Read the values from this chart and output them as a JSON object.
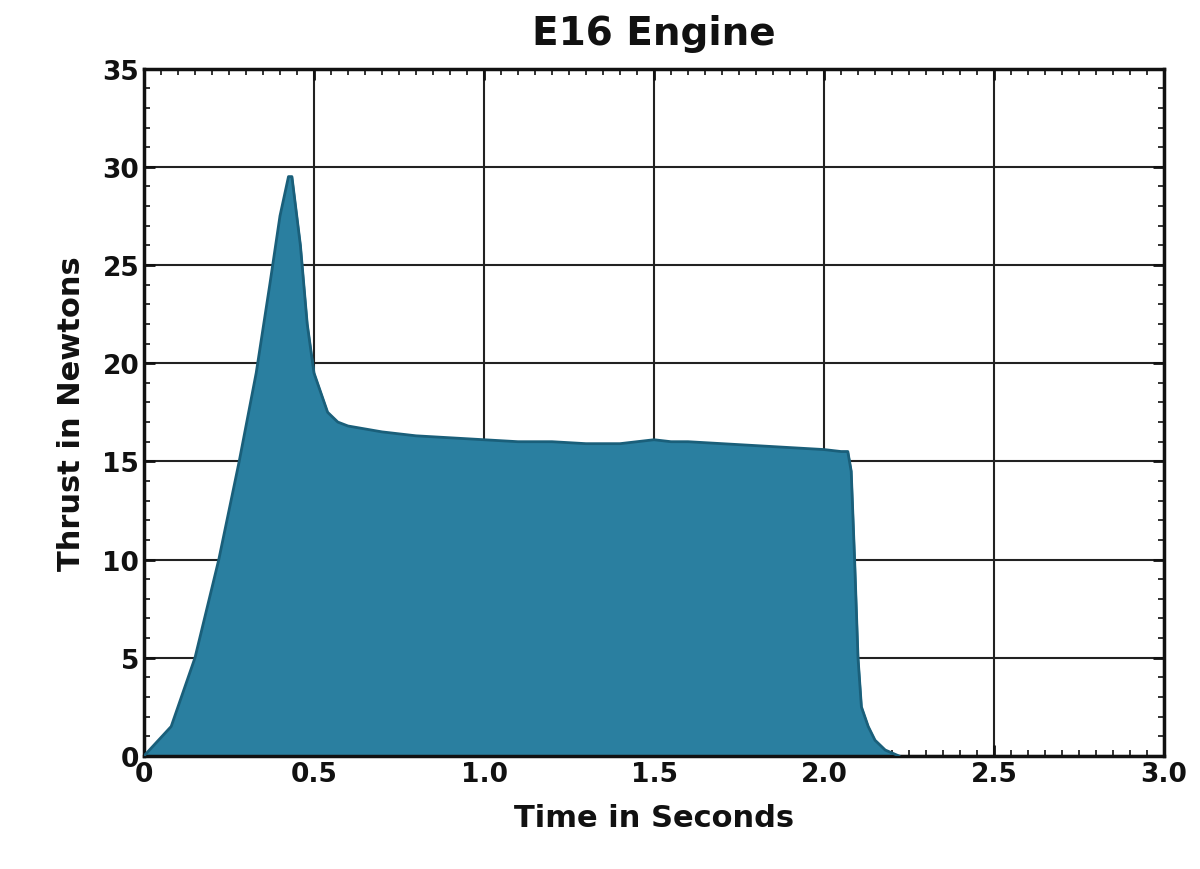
{
  "title": "E16 Engine",
  "xlabel": "Time in Seconds",
  "ylabel": "Thrust in Newtons",
  "fill_color": "#2a7fa0",
  "line_color": "#1a5f7a",
  "background_color": "#ffffff",
  "xlim": [
    0,
    3.0
  ],
  "ylim": [
    0,
    35
  ],
  "xticks": [
    0,
    0.5,
    1.0,
    1.5,
    2.0,
    2.5,
    3.0
  ],
  "yticks": [
    0,
    5,
    10,
    15,
    20,
    25,
    30,
    35
  ],
  "xtick_labels": [
    "0",
    "0.5",
    "1.0",
    "1.5",
    "2.0",
    "2.5",
    "3.0"
  ],
  "ytick_labels": [
    "0",
    "5",
    "10",
    "15",
    "20",
    "25",
    "30",
    "35"
  ],
  "title_fontsize": 28,
  "label_fontsize": 22,
  "tick_fontsize": 19,
  "grid_color": "#222222",
  "grid_linewidth": 1.5,
  "spine_linewidth": 2.5,
  "thrust_curve": [
    [
      0.0,
      0.0
    ],
    [
      0.08,
      1.5
    ],
    [
      0.15,
      5.0
    ],
    [
      0.22,
      10.0
    ],
    [
      0.28,
      15.0
    ],
    [
      0.33,
      19.5
    ],
    [
      0.37,
      24.0
    ],
    [
      0.4,
      27.5
    ],
    [
      0.425,
      29.5
    ],
    [
      0.435,
      29.5
    ],
    [
      0.46,
      26.0
    ],
    [
      0.48,
      22.0
    ],
    [
      0.5,
      19.5
    ],
    [
      0.52,
      18.5
    ],
    [
      0.54,
      17.5
    ],
    [
      0.57,
      17.0
    ],
    [
      0.6,
      16.8
    ],
    [
      0.7,
      16.5
    ],
    [
      0.8,
      16.3
    ],
    [
      0.9,
      16.2
    ],
    [
      1.0,
      16.1
    ],
    [
      1.1,
      16.0
    ],
    [
      1.2,
      16.0
    ],
    [
      1.3,
      15.9
    ],
    [
      1.4,
      15.9
    ],
    [
      1.45,
      16.0
    ],
    [
      1.5,
      16.1
    ],
    [
      1.55,
      16.0
    ],
    [
      1.6,
      16.0
    ],
    [
      1.7,
      15.9
    ],
    [
      1.8,
      15.8
    ],
    [
      1.9,
      15.7
    ],
    [
      2.0,
      15.6
    ],
    [
      2.05,
      15.5
    ],
    [
      2.07,
      15.5
    ],
    [
      2.08,
      14.5
    ],
    [
      2.09,
      10.0
    ],
    [
      2.1,
      5.0
    ],
    [
      2.11,
      2.5
    ],
    [
      2.13,
      1.5
    ],
    [
      2.15,
      0.8
    ],
    [
      2.18,
      0.3
    ],
    [
      2.22,
      0.0
    ]
  ]
}
